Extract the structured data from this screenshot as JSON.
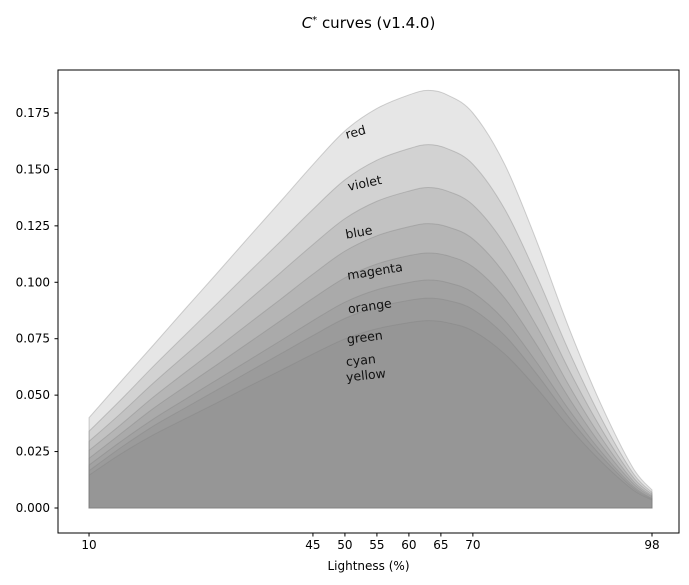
{
  "figure": {
    "title": {
      "math_var": "C",
      "superscript": "*",
      "rest": " curves (v1.4.0)"
    }
  },
  "chart_data": {
    "type": "area",
    "title": "C* curves (v1.4.0)",
    "xlabel": "Lightness (%)",
    "ylabel": "",
    "x_ticks": [
      10,
      45,
      50,
      55,
      60,
      65,
      70,
      98
    ],
    "y_tick_labels": [
      "0.000",
      "0.025",
      "0.050",
      "0.075",
      "0.100",
      "0.125",
      "0.150",
      "0.175"
    ],
    "xlim": [
      5.15,
      102.22
    ],
    "ylim": [
      -0.01108,
      0.19405
    ],
    "grid": false,
    "legend": "inline-labels",
    "fill_color": "#808080",
    "fill_alpha": 0.2,
    "edge_alpha": 0.35,
    "label_color": "#111111",
    "axis_color": "#000000",
    "series": [
      {
        "name": "red",
        "label": "red",
        "peak": 0.185,
        "label_pos": {
          "x": 51.7,
          "y": 0.1662
        },
        "label_rotation": -15,
        "points": [
          [
            10,
            0.04
          ],
          [
            15,
            0.0561
          ],
          [
            20,
            0.072
          ],
          [
            25,
            0.0881
          ],
          [
            30,
            0.104
          ],
          [
            35,
            0.1201
          ],
          [
            40,
            0.136
          ],
          [
            45,
            0.1521
          ],
          [
            50,
            0.1671
          ],
          [
            55,
            0.177
          ],
          [
            60,
            0.183
          ],
          [
            63,
            0.185
          ],
          [
            66,
            0.183
          ],
          [
            70,
            0.175
          ],
          [
            75,
            0.1521
          ],
          [
            80,
            0.118
          ],
          [
            85,
            0.0799
          ],
          [
            90,
            0.0461
          ],
          [
            95,
            0.0179
          ],
          [
            98,
            0.008
          ]
        ]
      },
      {
        "name": "violet",
        "label": "violet",
        "peak": 0.161,
        "label_pos": {
          "x": 53.1,
          "y": 0.1436
        },
        "label_rotation": -12,
        "points": [
          [
            10,
            0.034
          ],
          [
            15,
            0.048
          ],
          [
            20,
            0.0626
          ],
          [
            25,
            0.0766
          ],
          [
            30,
            0.0905
          ],
          [
            35,
            0.1045
          ],
          [
            40,
            0.1183
          ],
          [
            45,
            0.1323
          ],
          [
            50,
            0.1454
          ],
          [
            55,
            0.1541
          ],
          [
            60,
            0.1592
          ],
          [
            63,
            0.161
          ],
          [
            66,
            0.1592
          ],
          [
            70,
            0.1523
          ],
          [
            75,
            0.1323
          ],
          [
            80,
            0.1027
          ],
          [
            85,
            0.0696
          ],
          [
            90,
            0.0401
          ],
          [
            95,
            0.0156
          ],
          [
            98,
            0.0069
          ]
        ]
      },
      {
        "name": "blue",
        "label": "blue",
        "peak": 0.142,
        "label_pos": {
          "x": 52.2,
          "y": 0.1219
        },
        "label_rotation": -10,
        "points": [
          [
            10,
            0.0295
          ],
          [
            15,
            0.042
          ],
          [
            20,
            0.0552
          ],
          [
            25,
            0.0676
          ],
          [
            30,
            0.0798
          ],
          [
            35,
            0.0922
          ],
          [
            40,
            0.1044
          ],
          [
            45,
            0.1167
          ],
          [
            50,
            0.1282
          ],
          [
            55,
            0.1359
          ],
          [
            60,
            0.1404
          ],
          [
            63,
            0.142
          ],
          [
            66,
            0.1404
          ],
          [
            70,
            0.1343
          ],
          [
            75,
            0.1167
          ],
          [
            80,
            0.0906
          ],
          [
            85,
            0.0613
          ],
          [
            90,
            0.0354
          ],
          [
            95,
            0.0138
          ],
          [
            98,
            0.0061
          ]
        ]
      },
      {
        "name": "magenta",
        "label": "magenta",
        "peak": 0.126,
        "label_pos": {
          "x": 54.7,
          "y": 0.1046
        },
        "label_rotation": -9,
        "points": [
          [
            10,
            0.0255
          ],
          [
            15,
            0.037
          ],
          [
            20,
            0.049
          ],
          [
            25,
            0.06
          ],
          [
            30,
            0.0708
          ],
          [
            35,
            0.0818
          ],
          [
            40,
            0.0926
          ],
          [
            45,
            0.1036
          ],
          [
            50,
            0.1138
          ],
          [
            55,
            0.1206
          ],
          [
            60,
            0.1246
          ],
          [
            63,
            0.126
          ],
          [
            66,
            0.1246
          ],
          [
            70,
            0.1192
          ],
          [
            75,
            0.1036
          ],
          [
            80,
            0.0804
          ],
          [
            85,
            0.0544
          ],
          [
            90,
            0.0314
          ],
          [
            95,
            0.0122
          ],
          [
            98,
            0.0054
          ]
        ]
      },
      {
        "name": "orange",
        "label": "orange",
        "peak": 0.113,
        "label_pos": {
          "x": 53.9,
          "y": 0.0891
        },
        "label_rotation": -8,
        "points": [
          [
            10,
            0.022
          ],
          [
            15,
            0.033
          ],
          [
            20,
            0.044
          ],
          [
            25,
            0.0538
          ],
          [
            30,
            0.0635
          ],
          [
            35,
            0.0733
          ],
          [
            40,
            0.0831
          ],
          [
            45,
            0.0929
          ],
          [
            50,
            0.102
          ],
          [
            55,
            0.1081
          ],
          [
            60,
            0.1118
          ],
          [
            63,
            0.113
          ],
          [
            66,
            0.1118
          ],
          [
            70,
            0.1069
          ],
          [
            75,
            0.0929
          ],
          [
            80,
            0.0721
          ],
          [
            85,
            0.0488
          ],
          [
            90,
            0.0281
          ],
          [
            95,
            0.011
          ],
          [
            98,
            0.0049
          ]
        ]
      },
      {
        "name": "green",
        "label": "green",
        "peak": 0.101,
        "label_pos": {
          "x": 53.1,
          "y": 0.0753
        },
        "label_rotation": -7,
        "points": [
          [
            10,
            0.019
          ],
          [
            15,
            0.0295
          ],
          [
            20,
            0.0393
          ],
          [
            25,
            0.0481
          ],
          [
            30,
            0.0568
          ],
          [
            35,
            0.0655
          ],
          [
            40,
            0.0742
          ],
          [
            45,
            0.083
          ],
          [
            50,
            0.0912
          ],
          [
            55,
            0.0967
          ],
          [
            60,
            0.0999
          ],
          [
            63,
            0.101
          ],
          [
            66,
            0.0999
          ],
          [
            70,
            0.0955
          ],
          [
            75,
            0.083
          ],
          [
            80,
            0.0644
          ],
          [
            85,
            0.0436
          ],
          [
            90,
            0.0251
          ],
          [
            95,
            0.0098
          ],
          [
            98,
            0.0043
          ]
        ]
      },
      {
        "name": "cyan",
        "label": "cyan",
        "peak": 0.093,
        "label_pos": {
          "x": 52.5,
          "y": 0.0651
        },
        "label_rotation": -6,
        "points": [
          [
            10,
            0.0165
          ],
          [
            15,
            0.0268
          ],
          [
            20,
            0.0362
          ],
          [
            25,
            0.0443
          ],
          [
            30,
            0.0523
          ],
          [
            35,
            0.0604
          ],
          [
            40,
            0.0684
          ],
          [
            45,
            0.0764
          ],
          [
            50,
            0.084
          ],
          [
            55,
            0.089
          ],
          [
            60,
            0.092
          ],
          [
            63,
            0.093
          ],
          [
            66,
            0.092
          ],
          [
            70,
            0.088
          ],
          [
            75,
            0.0764
          ],
          [
            80,
            0.0593
          ],
          [
            85,
            0.0402
          ],
          [
            90,
            0.0232
          ],
          [
            95,
            0.009
          ],
          [
            98,
            0.004
          ]
        ]
      },
      {
        "name": "yellow",
        "label": "yellow",
        "peak": 0.083,
        "label_pos": {
          "x": 53.3,
          "y": 0.0585
        },
        "label_rotation": -6,
        "points": [
          [
            10,
            0.0145
          ],
          [
            15,
            0.024
          ],
          [
            20,
            0.0323
          ],
          [
            25,
            0.0395
          ],
          [
            30,
            0.0466
          ],
          [
            35,
            0.0539
          ],
          [
            40,
            0.061
          ],
          [
            45,
            0.0682
          ],
          [
            50,
            0.0749
          ],
          [
            55,
            0.0794
          ],
          [
            60,
            0.0821
          ],
          [
            63,
            0.083
          ],
          [
            66,
            0.0821
          ],
          [
            70,
            0.0785
          ],
          [
            75,
            0.0682
          ],
          [
            80,
            0.053
          ],
          [
            85,
            0.0359
          ],
          [
            90,
            0.0207
          ],
          [
            95,
            0.0081
          ],
          [
            98,
            0.0036
          ]
        ]
      }
    ]
  }
}
